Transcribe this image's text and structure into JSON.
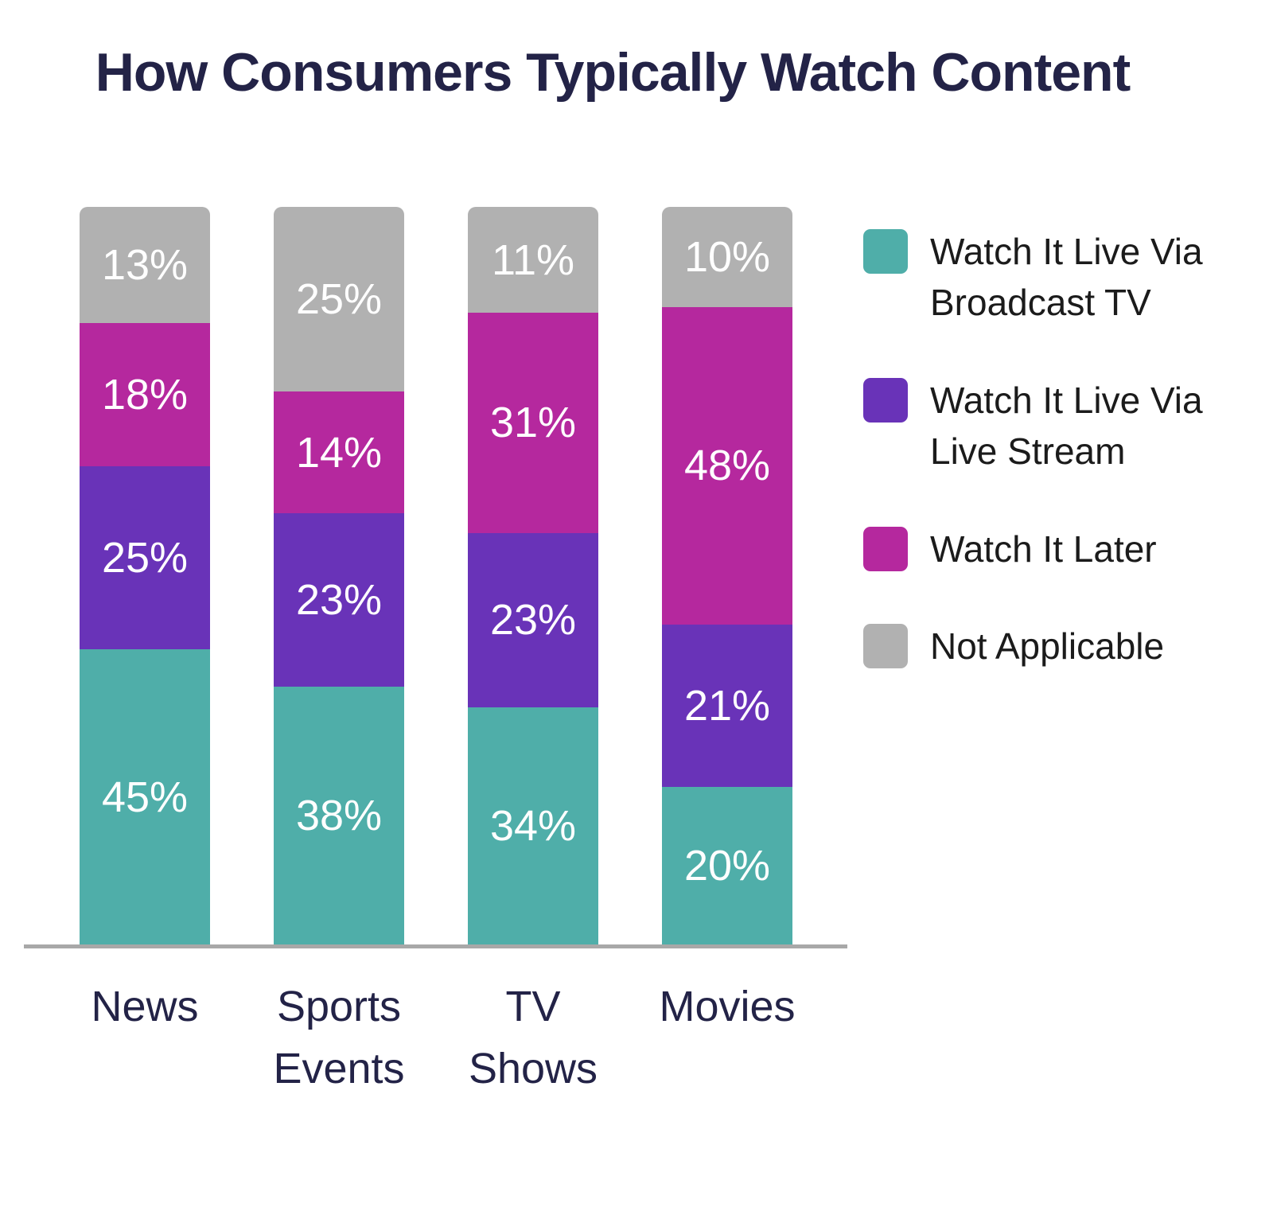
{
  "title": "How Consumers Typically Watch Content",
  "colors": {
    "broadcast_tv": "#4FAEA9",
    "live_stream": "#6933B8",
    "watch_later": "#B5289E",
    "not_applicable": "#B1B1B1",
    "axis_line": "#A8A8A8",
    "title_text": "#232347",
    "legend_text": "#1B1B1B",
    "value_text": "#FFFFFF",
    "background": "#FFFFFF"
  },
  "chart_data": {
    "type": "bar",
    "stacked": true,
    "title": "How Consumers Typically Watch Content",
    "xlabel": "",
    "ylabel": "",
    "y_axis_visible": false,
    "ylim": [
      0,
      100
    ],
    "value_suffix": "%",
    "grid": false,
    "legend_position": "right",
    "categories": [
      "News",
      "Sports Events",
      "TV Shows",
      "Movies"
    ],
    "category_label_lines": [
      [
        "News"
      ],
      [
        "Sports",
        "Events"
      ],
      [
        "TV",
        "Shows"
      ],
      [
        "Movies"
      ]
    ],
    "series": [
      {
        "name": "Watch It Live Via Broadcast TV",
        "color": "#4FAEA9",
        "values": [
          45,
          38,
          34,
          20
        ]
      },
      {
        "name": "Watch It Live Via Live Stream",
        "color": "#6933B8",
        "values": [
          25,
          23,
          23,
          21
        ]
      },
      {
        "name": "Watch It Later",
        "color": "#B5289E",
        "values": [
          18,
          14,
          31,
          48
        ]
      },
      {
        "name": "Not Applicable",
        "color": "#B1B1B1",
        "values": [
          13,
          25,
          11,
          10
        ]
      }
    ]
  }
}
